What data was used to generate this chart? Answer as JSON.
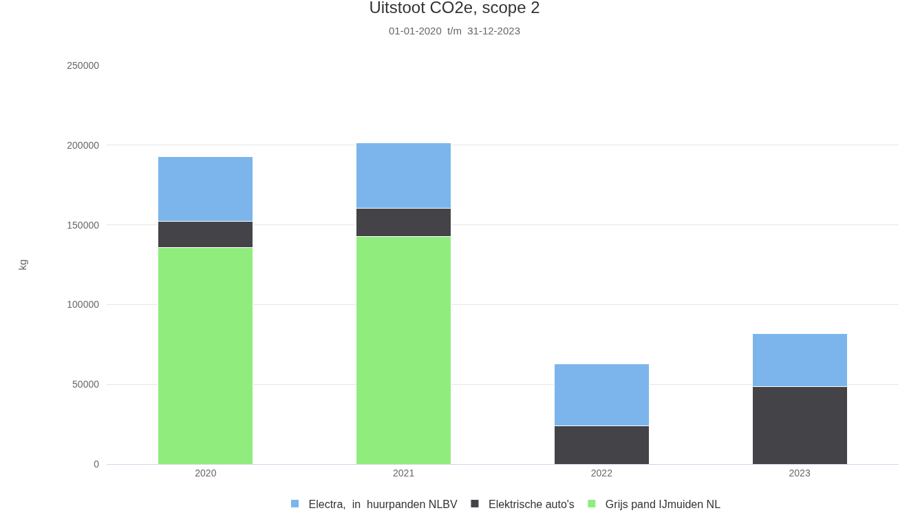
{
  "chart_data": {
    "type": "bar",
    "title": "Uitstoot CO2e, scope 2",
    "subtitle": "01-01-2020  t/m  31-12-2023",
    "ylabel": "kg",
    "categories": [
      "2020",
      "2021",
      "2022",
      "2023"
    ],
    "stacked": true,
    "series": [
      {
        "name": "Grijs pand IJmuiden NL",
        "color": "#90ed7d",
        "values": [
          136000,
          142500,
          null,
          null
        ]
      },
      {
        "name": "Elektrische auto's",
        "color": "#434348",
        "values": [
          16000,
          18000,
          24000,
          48500
        ]
      },
      {
        "name": "Electra,  in  huurpanden NLBV",
        "color": "#7cb5ec",
        "values": [
          41000,
          41000,
          39000,
          33500
        ]
      }
    ],
    "ylim": [
      0,
      250000
    ],
    "yticks": [
      0,
      50000,
      100000,
      150000,
      200000,
      250000
    ],
    "grid": "y",
    "legend": "bottom"
  }
}
